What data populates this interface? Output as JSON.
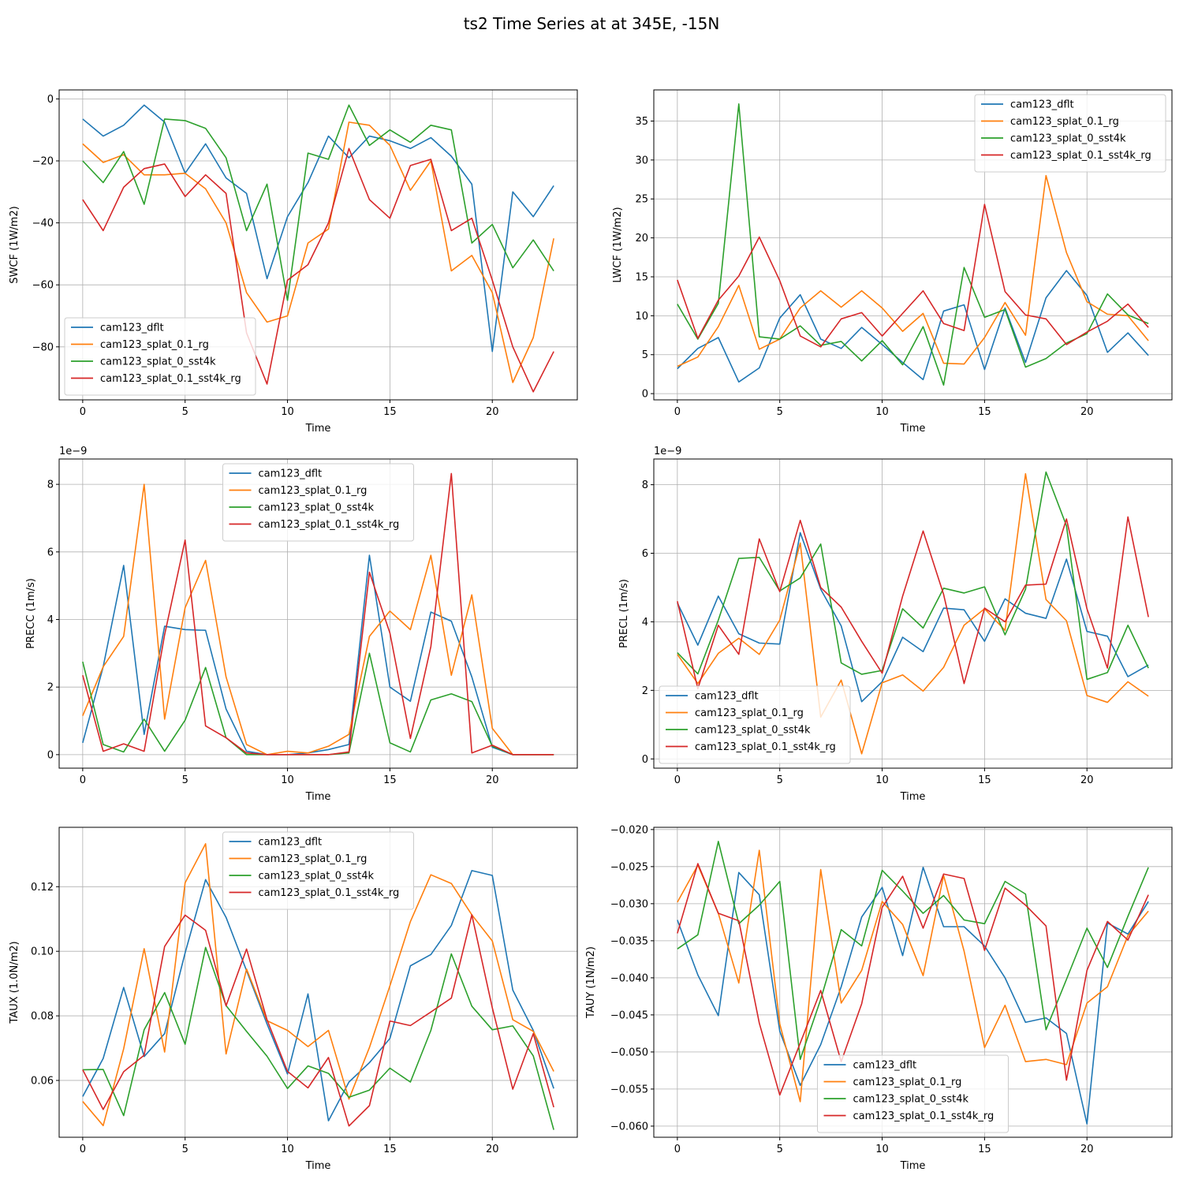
{
  "figure": {
    "title": "ts2 Time Series at at 345E, -15N"
  },
  "colors": {
    "series": [
      "#1f77b4",
      "#ff7f0e",
      "#2ca02c",
      "#d62728"
    ],
    "grid": "#b0b0b0",
    "axis": "#000000"
  },
  "chart_data": [
    {
      "id": "swcf",
      "type": "line",
      "xlabel": "Time",
      "ylabel": "SWCF (1W/m2)",
      "xlim": [
        -1.15,
        24.15
      ],
      "ylim": [
        -97.1,
        2.9
      ],
      "xticks": [
        0,
        5,
        10,
        15,
        20
      ],
      "yticks": [
        0,
        -20,
        -40,
        -60,
        -80
      ],
      "ytick_labels": [
        "0",
        "−20",
        "−40",
        "−60",
        "−80"
      ],
      "grid": true,
      "legend_loc": "lower-left",
      "x": [
        0,
        1,
        2,
        3,
        4,
        5,
        6,
        7,
        8,
        9,
        10,
        11,
        12,
        13,
        14,
        15,
        16,
        17,
        18,
        19,
        20,
        21,
        22,
        23
      ],
      "series": [
        {
          "name": "cam123_dflt",
          "values": [
            -6.5,
            -12,
            -8.5,
            -2,
            -7.5,
            -24,
            -14.5,
            -25.5,
            -30.5,
            -58,
            -38,
            -27,
            -12,
            -19,
            -12,
            -13.5,
            -16,
            -12.5,
            -18.5,
            -27.5,
            -81.5,
            -30,
            -38,
            -28
          ]
        },
        {
          "name": "cam123_splat_0.1_rg",
          "values": [
            -14.5,
            -20.5,
            -18,
            -24.5,
            -24.5,
            -24,
            -29,
            -40,
            -62.5,
            -72,
            -70,
            -46.5,
            -42,
            -7.5,
            -8.5,
            -15,
            -29.5,
            -20,
            -55.5,
            -50.5,
            -62.5,
            -91.5,
            -77,
            -45
          ]
        },
        {
          "name": "cam123_splat_0_sst4k",
          "values": [
            -20,
            -27,
            -17,
            -34,
            -6.5,
            -7,
            -9.5,
            -19,
            -42.5,
            -27.5,
            -65,
            -17.5,
            -19.5,
            -2,
            -15,
            -10,
            -14,
            -8.5,
            -10,
            -46.5,
            -40.5,
            -54.5,
            -45.5,
            -55.5
          ]
        },
        {
          "name": "cam123_splat_0.1_sst4k_rg",
          "values": [
            -32.5,
            -42.5,
            -28.5,
            -22.5,
            -21,
            -31.5,
            -24.5,
            -30.5,
            -75.5,
            -92,
            -58.5,
            -53.5,
            -40,
            -16,
            -32.5,
            -38.5,
            -21.5,
            -19.5,
            -42.5,
            -38.5,
            -58.5,
            -80,
            -94.5,
            -81.5
          ]
        }
      ]
    },
    {
      "id": "lwcf",
      "type": "line",
      "xlabel": "Time",
      "ylabel": "LWCF (1W/m2)",
      "xlim": [
        -1.15,
        24.15
      ],
      "ylim": [
        -0.8,
        39
      ],
      "xticks": [
        0,
        5,
        10,
        15,
        20
      ],
      "yticks": [
        0,
        5,
        10,
        15,
        20,
        25,
        30,
        35
      ],
      "ytick_labels": [
        "0",
        "5",
        "10",
        "15",
        "20",
        "25",
        "30",
        "35"
      ],
      "grid": true,
      "legend_loc": "upper-right",
      "x": [
        0,
        1,
        2,
        3,
        4,
        5,
        6,
        7,
        8,
        9,
        10,
        11,
        12,
        13,
        14,
        15,
        16,
        17,
        18,
        19,
        20,
        21,
        22,
        23
      ],
      "series": [
        {
          "name": "cam123_dflt",
          "values": [
            3.2,
            5.8,
            7.2,
            1.5,
            3.3,
            9.7,
            12.7,
            7,
            5.8,
            8.5,
            6.3,
            4,
            1.8,
            10.6,
            11.4,
            3.1,
            11,
            4,
            12.3,
            15.8,
            12.6,
            5.3,
            7.8,
            4.9
          ]
        },
        {
          "name": "cam123_splat_0.1_rg",
          "values": [
            3.5,
            4.7,
            8.6,
            13.9,
            5.7,
            7,
            11,
            13.2,
            11.1,
            13.2,
            11,
            8,
            10.3,
            3.9,
            3.8,
            7.2,
            11.7,
            7.5,
            28,
            18.1,
            11.8,
            10.2,
            10,
            6.8
          ]
        },
        {
          "name": "cam123_splat_0_sst4k",
          "values": [
            11.5,
            7,
            11.6,
            37.2,
            7.3,
            7,
            8.7,
            6.2,
            6.7,
            4.2,
            6.8,
            3.7,
            8.6,
            1.1,
            16.2,
            9.8,
            10.8,
            3.4,
            4.5,
            6.5,
            7.7,
            12.8,
            10.1,
            9
          ]
        },
        {
          "name": "cam123_splat_0.1_sst4k_rg",
          "values": [
            14.6,
            7.1,
            12,
            15.1,
            20.1,
            14.5,
            7.4,
            6,
            9.6,
            10.4,
            7.4,
            10.3,
            13.2,
            9,
            8.1,
            24.3,
            13.1,
            10.1,
            9.6,
            6.3,
            7.9,
            9.3,
            11.5,
            8.5
          ]
        }
      ]
    },
    {
      "id": "precc",
      "type": "line",
      "xlabel": "Time",
      "ylabel": "PRECC (1m/s)",
      "offset_label": "1e−9",
      "xlim": [
        -1.15,
        24.15
      ],
      "ylim": [
        -0.4,
        8.75
      ],
      "xticks": [
        0,
        5,
        10,
        15,
        20
      ],
      "yticks": [
        0,
        2,
        4,
        6,
        8
      ],
      "ytick_labels": [
        "0",
        "2",
        "4",
        "6",
        "8"
      ],
      "grid": true,
      "legend_loc": "upper-center",
      "x": [
        0,
        1,
        2,
        3,
        4,
        5,
        6,
        7,
        8,
        9,
        10,
        11,
        12,
        13,
        14,
        15,
        16,
        17,
        18,
        19,
        20,
        21,
        22,
        23
      ],
      "series": [
        {
          "name": "cam123_dflt",
          "values": [
            0.35,
            2.6,
            5.6,
            0.6,
            3.8,
            3.7,
            3.68,
            1.35,
            0.1,
            0,
            0,
            0.05,
            0.15,
            0.3,
            5.9,
            2,
            1.58,
            4.22,
            3.95,
            2.3,
            0.22,
            0,
            0,
            0
          ]
        },
        {
          "name": "cam123_splat_0.1_rg",
          "values": [
            1.15,
            2.6,
            3.5,
            8,
            1.05,
            4.35,
            5.75,
            2.3,
            0.3,
            0,
            0.1,
            0.05,
            0.25,
            0.6,
            3.5,
            4.25,
            3.7,
            5.9,
            2.35,
            4.73,
            0.78,
            0,
            0,
            0
          ]
        },
        {
          "name": "cam123_splat_0_sst4k",
          "values": [
            2.75,
            0.3,
            0.08,
            1.05,
            0.1,
            1.02,
            2.58,
            0.5,
            0,
            0,
            0,
            0,
            0,
            0.05,
            3,
            0.35,
            0.08,
            1.62,
            1.8,
            1.57,
            0.25,
            0,
            0,
            0
          ]
        },
        {
          "name": "cam123_splat_0.1_sst4k_rg",
          "values": [
            2.35,
            0.1,
            0.32,
            0.1,
            3.55,
            6.35,
            0.85,
            0.5,
            0.05,
            0,
            0,
            0,
            0,
            0.08,
            5.4,
            3.6,
            0.48,
            3.2,
            8.32,
            0.05,
            0.28,
            0,
            0,
            0
          ]
        }
      ]
    },
    {
      "id": "precl",
      "type": "line",
      "xlabel": "Time",
      "ylabel": "PRECL (1m/s)",
      "offset_label": "1e−9",
      "xlim": [
        -1.15,
        24.15
      ],
      "ylim": [
        -0.27,
        8.75
      ],
      "xticks": [
        0,
        5,
        10,
        15,
        20
      ],
      "yticks": [
        0,
        2,
        4,
        6,
        8
      ],
      "ytick_labels": [
        "0",
        "2",
        "4",
        "6",
        "8"
      ],
      "grid": true,
      "legend_loc": "lower-left",
      "x": [
        0,
        1,
        2,
        3,
        4,
        5,
        6,
        7,
        8,
        9,
        10,
        11,
        12,
        13,
        14,
        15,
        16,
        17,
        18,
        19,
        20,
        21,
        22,
        23
      ],
      "series": [
        {
          "name": "cam123_dflt",
          "values": [
            4.55,
            3.32,
            4.75,
            3.65,
            3.38,
            3.35,
            6.6,
            4.95,
            3.88,
            1.67,
            2.25,
            3.55,
            3.13,
            4.4,
            4.35,
            3.43,
            4.67,
            4.25,
            4.1,
            5.83,
            3.72,
            3.58,
            2.4,
            2.74
          ]
        },
        {
          "name": "cam123_splat_0.1_rg",
          "values": [
            3.05,
            2.2,
            3.08,
            3.52,
            3.05,
            4.05,
            6.3,
            1.22,
            2.3,
            0.15,
            2.22,
            2.45,
            1.98,
            2.67,
            3.9,
            4.38,
            3.75,
            8.32,
            4.65,
            4.03,
            1.85,
            1.65,
            2.25,
            1.83
          ]
        },
        {
          "name": "cam123_splat_0_sst4k",
          "values": [
            3.1,
            2.48,
            4.05,
            5.85,
            5.88,
            4.9,
            5.28,
            6.27,
            2.8,
            2.47,
            2.58,
            4.38,
            3.82,
            4.98,
            4.84,
            5.02,
            3.62,
            4.95,
            8.37,
            6.8,
            2.32,
            2.52,
            3.9,
            2.65
          ]
        },
        {
          "name": "cam123_splat_0.1_sst4k_rg",
          "values": [
            4.6,
            2.05,
            3.9,
            3.05,
            6.42,
            4.88,
            6.96,
            5,
            4.43,
            3.43,
            2.5,
            4.75,
            6.65,
            4.8,
            2.2,
            4.4,
            4,
            5.07,
            5.1,
            7,
            4.38,
            2.65,
            7.06,
            4.14
          ]
        }
      ]
    },
    {
      "id": "taux",
      "type": "line",
      "xlabel": "Time",
      "ylabel": "TAUX (1.0N/m2)",
      "xlim": [
        -1.15,
        24.15
      ],
      "ylim": [
        0.0424,
        0.1384
      ],
      "xticks": [
        0,
        5,
        10,
        15,
        20
      ],
      "yticks": [
        0.06,
        0.08,
        0.1,
        0.12
      ],
      "ytick_labels": [
        "0.06",
        "0.08",
        "0.10",
        "0.12"
      ],
      "grid": true,
      "legend_loc": "upper-center",
      "x": [
        0,
        1,
        2,
        3,
        4,
        5,
        6,
        7,
        8,
        9,
        10,
        11,
        12,
        13,
        14,
        15,
        16,
        17,
        18,
        19,
        20,
        21,
        22,
        23
      ],
      "series": [
        {
          "name": "cam123_dflt",
          "values": [
            0.055,
            0.0668,
            0.0888,
            0.0674,
            0.0745,
            0.0995,
            0.1222,
            0.1105,
            0.094,
            0.0775,
            0.062,
            0.0868,
            0.0475,
            0.0595,
            0.0655,
            0.073,
            0.0955,
            0.099,
            0.108,
            0.125,
            0.1235,
            0.088,
            0.0755,
            0.0575
          ]
        },
        {
          "name": "cam123_splat_0.1_rg",
          "values": [
            0.0535,
            0.046,
            0.0698,
            0.1008,
            0.0688,
            0.1212,
            0.1333,
            0.0682,
            0.0945,
            0.0785,
            0.0755,
            0.0705,
            0.0755,
            0.0542,
            0.0702,
            0.0893,
            0.1092,
            0.1237,
            0.121,
            0.1113,
            0.1032,
            0.0788,
            0.0752,
            0.0628
          ]
        },
        {
          "name": "cam123_splat_0_sst4k",
          "values": [
            0.0633,
            0.0634,
            0.0491,
            0.0757,
            0.0872,
            0.0712,
            0.1012,
            0.0832,
            0.0752,
            0.0675,
            0.0575,
            0.0645,
            0.0622,
            0.0548,
            0.057,
            0.0638,
            0.0595,
            0.0755,
            0.0992,
            0.083,
            0.0757,
            0.0769,
            0.0676,
            0.0447
          ]
        },
        {
          "name": "cam123_splat_0.1_sst4k_rg",
          "values": [
            0.0633,
            0.051,
            0.0627,
            0.0678,
            0.1015,
            0.1112,
            0.1065,
            0.0831,
            0.1007,
            0.0788,
            0.0628,
            0.0577,
            0.0671,
            0.0459,
            0.0522,
            0.0784,
            0.077,
            0.0812,
            0.0855,
            0.1113,
            0.0825,
            0.0573,
            0.0745,
            0.0517
          ]
        }
      ]
    },
    {
      "id": "tauy",
      "type": "line",
      "xlabel": "Time",
      "ylabel": "TAUY (1N/m2)",
      "xlim": [
        -1.15,
        24.15
      ],
      "ylim": [
        -0.0615,
        -0.0197
      ],
      "xticks": [
        0,
        5,
        10,
        15,
        20
      ],
      "yticks": [
        -0.02,
        -0.025,
        -0.03,
        -0.035,
        -0.04,
        -0.045,
        -0.05,
        -0.055,
        -0.06
      ],
      "ytick_labels": [
        "−0.020",
        "−0.025",
        "−0.030",
        "−0.035",
        "−0.040",
        "−0.045",
        "−0.050",
        "−0.055",
        "−0.060"
      ],
      "grid": true,
      "legend_loc": "lower-center",
      "x": [
        0,
        1,
        2,
        3,
        4,
        5,
        6,
        7,
        8,
        9,
        10,
        11,
        12,
        13,
        14,
        15,
        16,
        17,
        18,
        19,
        20,
        21,
        22,
        23
      ],
      "series": [
        {
          "name": "cam123_dflt",
          "values": [
            -0.0322,
            -0.0396,
            -0.0451,
            -0.0258,
            -0.0288,
            -0.0472,
            -0.0545,
            -0.049,
            -0.0412,
            -0.0318,
            -0.0278,
            -0.037,
            -0.0251,
            -0.0331,
            -0.0331,
            -0.0357,
            -0.04,
            -0.046,
            -0.0454,
            -0.0475,
            -0.0597,
            -0.0326,
            -0.0341,
            -0.0297
          ]
        },
        {
          "name": "cam123_splat_0.1_rg",
          "values": [
            -0.0298,
            -0.0248,
            -0.0313,
            -0.0407,
            -0.0228,
            -0.0462,
            -0.0567,
            -0.0254,
            -0.0434,
            -0.039,
            -0.0297,
            -0.0328,
            -0.0397,
            -0.0262,
            -0.0364,
            -0.0494,
            -0.0437,
            -0.0513,
            -0.051,
            -0.0517,
            -0.0434,
            -0.0412,
            -0.0343,
            -0.031
          ]
        },
        {
          "name": "cam123_splat_0_sst4k",
          "values": [
            -0.0361,
            -0.0342,
            -0.0216,
            -0.0327,
            -0.0302,
            -0.027,
            -0.051,
            -0.0429,
            -0.0335,
            -0.0357,
            -0.0255,
            -0.0283,
            -0.0313,
            -0.0289,
            -0.0322,
            -0.0327,
            -0.027,
            -0.0287,
            -0.047,
            -0.0402,
            -0.0333,
            -0.0386,
            -0.0317,
            -0.0251
          ]
        },
        {
          "name": "cam123_splat_0.1_sst4k_rg",
          "values": [
            -0.034,
            -0.0246,
            -0.0313,
            -0.0323,
            -0.0461,
            -0.0558,
            -0.0488,
            -0.0417,
            -0.0513,
            -0.0435,
            -0.0305,
            -0.0263,
            -0.0333,
            -0.026,
            -0.0266,
            -0.0363,
            -0.0279,
            -0.0302,
            -0.033,
            -0.0538,
            -0.039,
            -0.0324,
            -0.0349,
            -0.0288
          ]
        }
      ]
    }
  ]
}
